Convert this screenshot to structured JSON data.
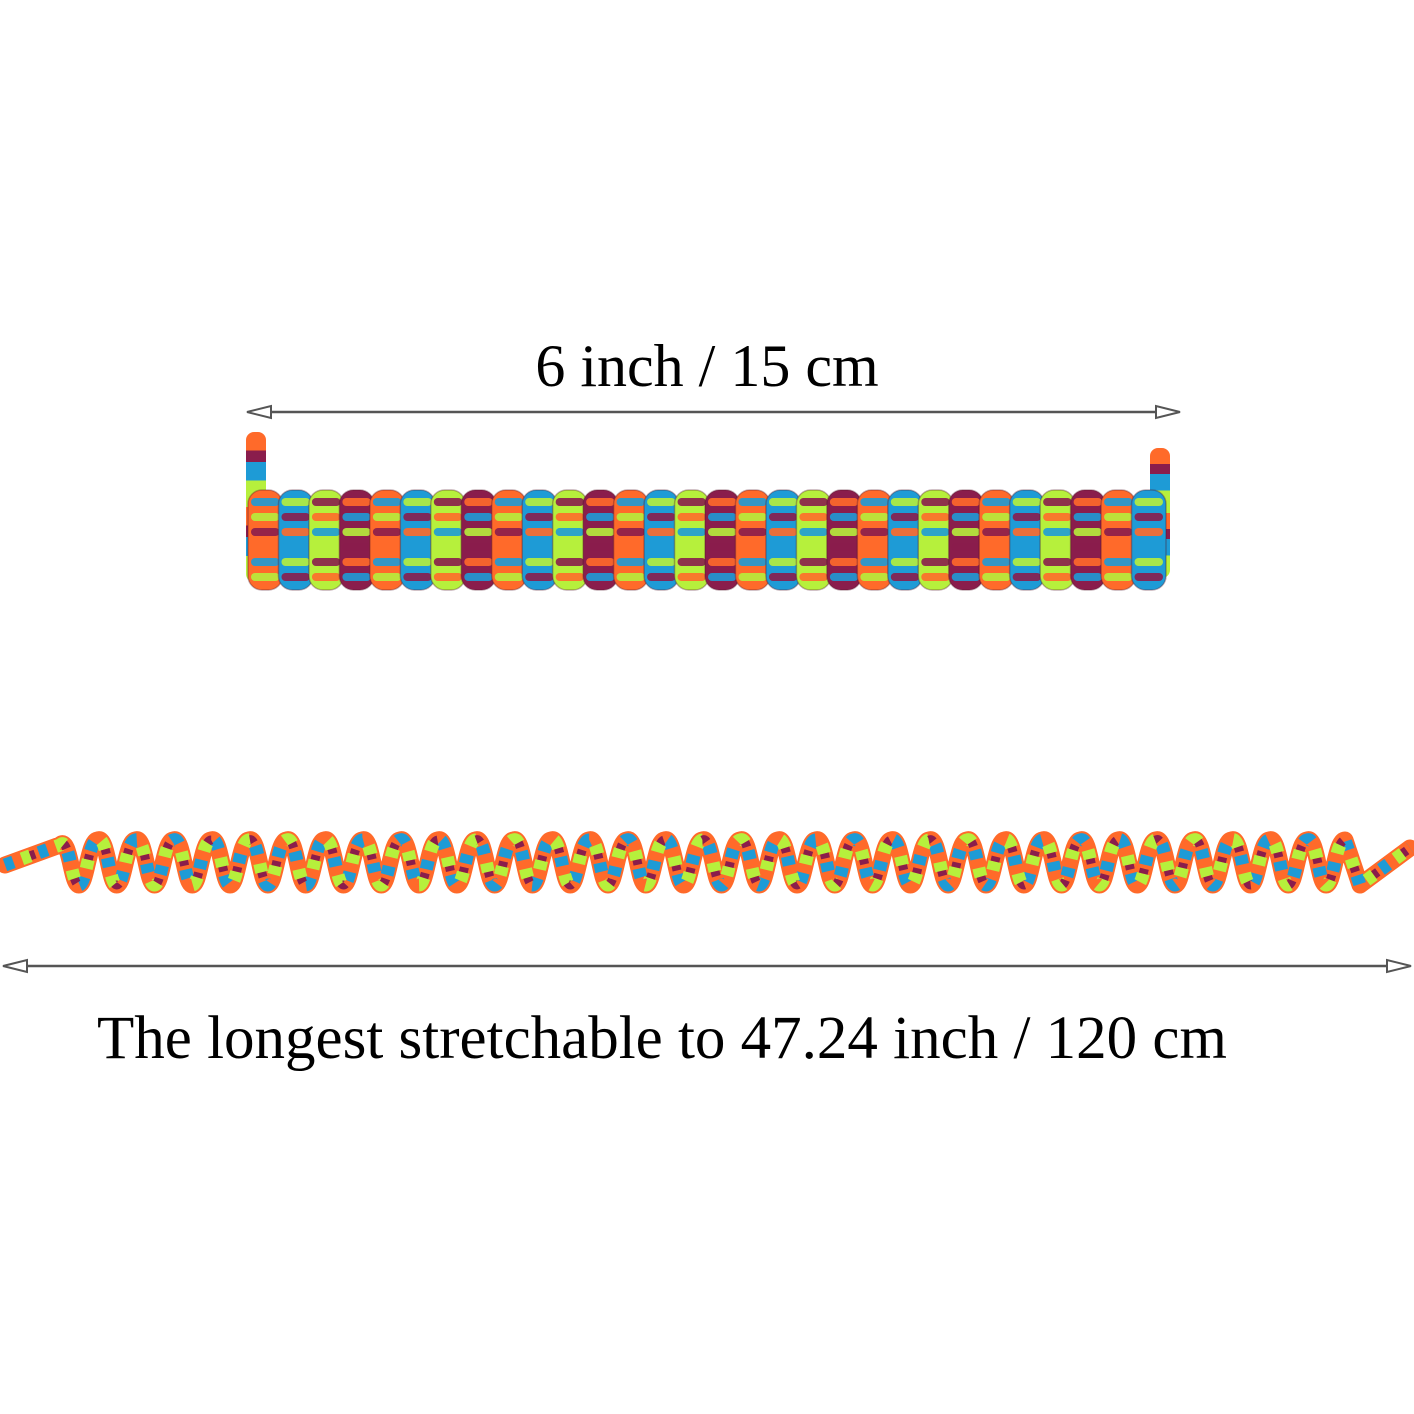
{
  "collapsed": {
    "label": "6 inch / 15 cm"
  },
  "stretched": {
    "label": "The longest stretchable to 47.24 inch / 120 cm"
  },
  "colors": {
    "orange": "#ff6a2a",
    "blue": "#1e9bd6",
    "lime": "#b6f03c",
    "maroon": "#8a1d4c",
    "arrow": "#555555"
  }
}
